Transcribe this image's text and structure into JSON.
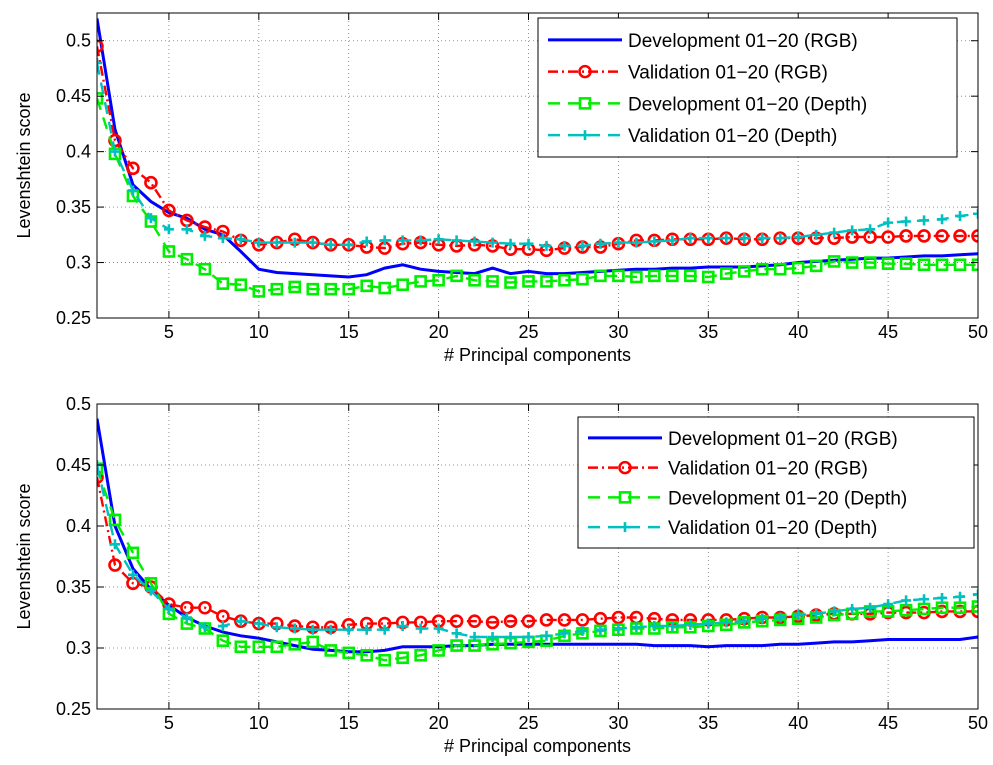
{
  "chart_data": [
    {
      "type": "line",
      "xlabel": "# Principal components",
      "ylabel": "Levenshtein score",
      "xlim": [
        1,
        50
      ],
      "ylim": [
        0.25,
        0.525
      ],
      "xticks": [
        5,
        10,
        15,
        20,
        25,
        30,
        35,
        40,
        45,
        50
      ],
      "yticks": [
        0.25,
        0.3,
        0.35,
        0.4,
        0.45,
        0.5
      ],
      "ytick_labels": [
        "0.25",
        "0.3",
        "0.35",
        "0.4",
        "0.45",
        "0.5"
      ],
      "grid": true,
      "legend_position": "top-right",
      "x": [
        1,
        2,
        3,
        4,
        5,
        6,
        7,
        8,
        9,
        10,
        11,
        12,
        13,
        14,
        15,
        16,
        17,
        18,
        19,
        20,
        21,
        22,
        23,
        24,
        25,
        26,
        27,
        28,
        29,
        30,
        31,
        32,
        33,
        34,
        35,
        36,
        37,
        38,
        39,
        40,
        41,
        42,
        43,
        44,
        45,
        46,
        47,
        48,
        49,
        50
      ],
      "series": [
        {
          "name": "Development 01−20 (RGB)",
          "color": "#0000ff",
          "line": "solid",
          "marker": "none",
          "values": [
            0.52,
            0.42,
            0.37,
            0.355,
            0.345,
            0.34,
            0.33,
            0.325,
            0.31,
            0.294,
            0.291,
            0.29,
            0.289,
            0.288,
            0.287,
            0.289,
            0.295,
            0.298,
            0.294,
            0.292,
            0.291,
            0.29,
            0.295,
            0.29,
            0.292,
            0.29,
            0.29,
            0.291,
            0.292,
            0.293,
            0.294,
            0.294,
            0.295,
            0.295,
            0.296,
            0.296,
            0.296,
            0.297,
            0.298,
            0.3,
            0.301,
            0.302,
            0.303,
            0.304,
            0.304,
            0.305,
            0.306,
            0.306,
            0.307,
            0.308
          ]
        },
        {
          "name": "Validation 01−20 (RGB)",
          "color": "#ff0000",
          "line": "dashdot",
          "marker": "circle",
          "values": [
            0.495,
            0.41,
            0.385,
            0.372,
            0.347,
            0.338,
            0.332,
            0.328,
            0.32,
            0.316,
            0.318,
            0.321,
            0.318,
            0.316,
            0.316,
            0.314,
            0.313,
            0.317,
            0.318,
            0.316,
            0.315,
            0.316,
            0.315,
            0.312,
            0.312,
            0.311,
            0.313,
            0.314,
            0.314,
            0.317,
            0.32,
            0.32,
            0.321,
            0.321,
            0.321,
            0.322,
            0.321,
            0.321,
            0.322,
            0.322,
            0.322,
            0.322,
            0.323,
            0.323,
            0.323,
            0.324,
            0.324,
            0.324,
            0.324,
            0.324
          ]
        },
        {
          "name": "Development 01−20 (Depth)",
          "color": "#00ee00",
          "line": "dashed",
          "marker": "square",
          "values": [
            0.448,
            0.398,
            0.36,
            0.337,
            0.31,
            0.303,
            0.294,
            0.281,
            0.28,
            0.274,
            0.276,
            0.278,
            0.276,
            0.276,
            0.276,
            0.279,
            0.277,
            0.28,
            0.283,
            0.284,
            0.288,
            0.284,
            0.283,
            0.282,
            0.283,
            0.283,
            0.284,
            0.285,
            0.288,
            0.288,
            0.287,
            0.288,
            0.288,
            0.288,
            0.287,
            0.29,
            0.292,
            0.294,
            0.294,
            0.295,
            0.297,
            0.301,
            0.3,
            0.3,
            0.299,
            0.299,
            0.298,
            0.298,
            0.298,
            0.298
          ]
        },
        {
          "name": "Validation 01−20 (Depth)",
          "color": "#00c0c0",
          "line": "dashed",
          "marker": "plus",
          "values": [
            0.48,
            0.4,
            0.365,
            0.34,
            0.33,
            0.33,
            0.324,
            0.322,
            0.321,
            0.318,
            0.318,
            0.318,
            0.318,
            0.316,
            0.316,
            0.319,
            0.32,
            0.32,
            0.32,
            0.321,
            0.32,
            0.319,
            0.318,
            0.317,
            0.317,
            0.315,
            0.315,
            0.315,
            0.317,
            0.318,
            0.318,
            0.319,
            0.32,
            0.322,
            0.322,
            0.322,
            0.322,
            0.322,
            0.322,
            0.323,
            0.325,
            0.327,
            0.329,
            0.33,
            0.336,
            0.337,
            0.338,
            0.339,
            0.342,
            0.344
          ]
        }
      ]
    },
    {
      "type": "line",
      "xlabel": "# Principal components",
      "ylabel": "Levenshtein score",
      "xlim": [
        1,
        50
      ],
      "ylim": [
        0.25,
        0.5
      ],
      "xticks": [
        5,
        10,
        15,
        20,
        25,
        30,
        35,
        40,
        45,
        50
      ],
      "yticks": [
        0.25,
        0.3,
        0.35,
        0.4,
        0.45,
        0.5
      ],
      "ytick_labels": [
        "0.25",
        "0.3",
        "0.35",
        "0.4",
        "0.45",
        "0.5"
      ],
      "grid": true,
      "legend_position": "top-right",
      "x": [
        1,
        2,
        3,
        4,
        5,
        6,
        7,
        8,
        9,
        10,
        11,
        12,
        13,
        14,
        15,
        16,
        17,
        18,
        19,
        20,
        21,
        22,
        23,
        24,
        25,
        26,
        27,
        28,
        29,
        30,
        31,
        32,
        33,
        34,
        35,
        36,
        37,
        38,
        39,
        40,
        41,
        42,
        43,
        44,
        45,
        46,
        47,
        48,
        49,
        50
      ],
      "series": [
        {
          "name": "Development 01−20 (RGB)",
          "color": "#0000ff",
          "line": "solid",
          "marker": "none",
          "values": [
            0.488,
            0.4,
            0.365,
            0.348,
            0.335,
            0.325,
            0.318,
            0.313,
            0.31,
            0.308,
            0.305,
            0.302,
            0.299,
            0.298,
            0.297,
            0.297,
            0.298,
            0.301,
            0.301,
            0.301,
            0.302,
            0.302,
            0.303,
            0.303,
            0.303,
            0.303,
            0.303,
            0.303,
            0.303,
            0.303,
            0.303,
            0.302,
            0.302,
            0.302,
            0.301,
            0.302,
            0.302,
            0.302,
            0.303,
            0.303,
            0.304,
            0.305,
            0.305,
            0.306,
            0.307,
            0.307,
            0.307,
            0.307,
            0.307,
            0.309
          ]
        },
        {
          "name": "Validation 01−20 (RGB)",
          "color": "#ff0000",
          "line": "dashdot",
          "marker": "circle",
          "values": [
            0.44,
            0.368,
            0.353,
            0.35,
            0.336,
            0.333,
            0.333,
            0.326,
            0.322,
            0.32,
            0.32,
            0.318,
            0.317,
            0.317,
            0.319,
            0.32,
            0.32,
            0.321,
            0.321,
            0.322,
            0.322,
            0.322,
            0.321,
            0.322,
            0.322,
            0.323,
            0.323,
            0.323,
            0.324,
            0.325,
            0.325,
            0.324,
            0.323,
            0.323,
            0.323,
            0.323,
            0.324,
            0.325,
            0.325,
            0.326,
            0.327,
            0.328,
            0.328,
            0.328,
            0.329,
            0.329,
            0.329,
            0.33,
            0.33,
            0.33
          ]
        },
        {
          "name": "Development 01−20 (Depth)",
          "color": "#00ee00",
          "line": "dashed",
          "marker": "square",
          "values": [
            0.447,
            0.405,
            0.378,
            0.353,
            0.328,
            0.32,
            0.316,
            0.306,
            0.301,
            0.301,
            0.301,
            0.303,
            0.305,
            0.298,
            0.296,
            0.294,
            0.29,
            0.292,
            0.294,
            0.298,
            0.302,
            0.302,
            0.303,
            0.304,
            0.305,
            0.306,
            0.31,
            0.312,
            0.314,
            0.315,
            0.316,
            0.316,
            0.317,
            0.317,
            0.318,
            0.319,
            0.321,
            0.322,
            0.323,
            0.324,
            0.325,
            0.327,
            0.328,
            0.33,
            0.33,
            0.331,
            0.332,
            0.333,
            0.333,
            0.334
          ]
        },
        {
          "name": "Validation 01−20 (Depth)",
          "color": "#00c0c0",
          "line": "dashed",
          "marker": "plus",
          "values": [
            0.45,
            0.385,
            0.36,
            0.347,
            0.332,
            0.325,
            0.317,
            0.318,
            0.322,
            0.32,
            0.317,
            0.316,
            0.315,
            0.315,
            0.315,
            0.315,
            0.315,
            0.318,
            0.316,
            0.316,
            0.312,
            0.309,
            0.309,
            0.309,
            0.309,
            0.31,
            0.312,
            0.314,
            0.315,
            0.316,
            0.317,
            0.318,
            0.318,
            0.319,
            0.32,
            0.321,
            0.322,
            0.324,
            0.325,
            0.327,
            0.328,
            0.33,
            0.332,
            0.333,
            0.336,
            0.339,
            0.34,
            0.341,
            0.342,
            0.344
          ]
        }
      ]
    }
  ]
}
